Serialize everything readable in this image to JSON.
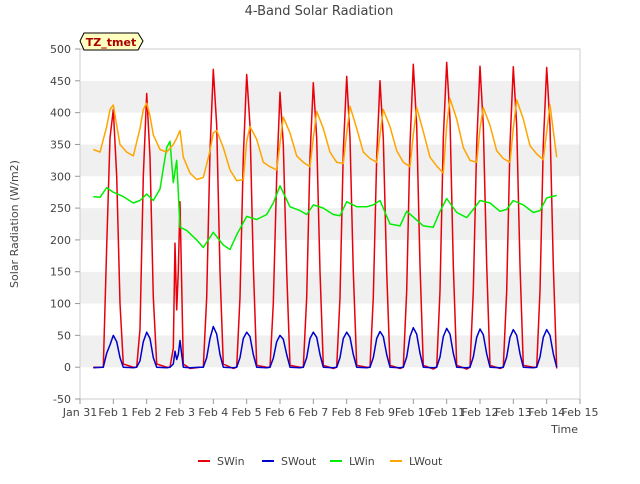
{
  "chart_data": {
    "type": "line",
    "title": "4-Band Solar Radiation",
    "xlabel": "Time",
    "ylabel": "Solar Radiation (W/m2)",
    "site_label": "TZ_tmet",
    "ylim": [
      -50,
      500
    ],
    "yticks": [
      -50,
      0,
      50,
      100,
      150,
      200,
      250,
      300,
      350,
      400,
      450,
      500
    ],
    "xlim": [
      0,
      15
    ],
    "xticks": [
      {
        "x": 0,
        "label": "Jan 31"
      },
      {
        "x": 1,
        "label": "Feb 1"
      },
      {
        "x": 2,
        "label": "Feb 2"
      },
      {
        "x": 3,
        "label": "Feb 3"
      },
      {
        "x": 4,
        "label": "Feb 4"
      },
      {
        "x": 5,
        "label": "Feb 5"
      },
      {
        "x": 6,
        "label": "Feb 6"
      },
      {
        "x": 7,
        "label": "Feb 7"
      },
      {
        "x": 8,
        "label": "Feb 8"
      },
      {
        "x": 9,
        "label": "Feb 9"
      },
      {
        "x": 10,
        "label": "Feb 10"
      },
      {
        "x": 11,
        "label": "Feb 11"
      },
      {
        "x": 12,
        "label": "Feb 12"
      },
      {
        "x": 13,
        "label": "Feb 13"
      },
      {
        "x": 14,
        "label": "Feb 14"
      },
      {
        "x": 15,
        "label": "Feb 15"
      }
    ],
    "grid": "horizontal bands",
    "legend_position": "bottom",
    "series": [
      {
        "name": "SWin",
        "color": "#e8000b",
        "x": [
          0.4,
          0.7,
          0.8,
          0.9,
          1.0,
          1.1,
          1.2,
          1.3,
          1.6,
          1.7,
          1.8,
          1.9,
          2.0,
          2.1,
          2.2,
          2.3,
          2.6,
          2.7,
          2.8,
          2.85,
          2.9,
          2.95,
          3.0,
          3.1,
          3.3,
          3.6,
          3.7,
          3.8,
          3.9,
          4.0,
          4.1,
          4.2,
          4.3,
          4.6,
          4.7,
          4.8,
          4.9,
          5.0,
          5.1,
          5.2,
          5.3,
          5.6,
          5.7,
          5.8,
          5.9,
          6.0,
          6.1,
          6.2,
          6.3,
          6.6,
          6.7,
          6.8,
          6.9,
          7.0,
          7.1,
          7.2,
          7.3,
          7.6,
          7.7,
          7.8,
          7.9,
          8.0,
          8.1,
          8.2,
          8.3,
          8.6,
          8.7,
          8.8,
          8.9,
          9.0,
          9.1,
          9.2,
          9.3,
          9.6,
          9.7,
          9.8,
          9.9,
          10.0,
          10.1,
          10.2,
          10.3,
          10.6,
          10.7,
          10.8,
          10.9,
          11.0,
          11.1,
          11.2,
          11.3,
          11.6,
          11.7,
          11.8,
          11.9,
          12.0,
          12.1,
          12.2,
          12.3,
          12.6,
          12.7,
          12.8,
          12.9,
          13.0,
          13.1,
          13.2,
          13.3,
          13.6,
          13.7,
          13.8,
          13.9,
          14.0,
          14.1,
          14.2,
          14.3
        ],
        "y": [
          0,
          0,
          190,
          360,
          405,
          300,
          100,
          5,
          0,
          0,
          60,
          300,
          430,
          330,
          110,
          5,
          0,
          0,
          30,
          195,
          90,
          150,
          260,
          5,
          -2,
          0,
          0,
          110,
          340,
          468,
          380,
          150,
          5,
          -2,
          0,
          110,
          330,
          460,
          380,
          160,
          3,
          0,
          0,
          100,
          300,
          432,
          350,
          150,
          3,
          0,
          0,
          110,
          330,
          447,
          360,
          150,
          3,
          -2,
          0,
          110,
          340,
          457,
          360,
          150,
          3,
          0,
          0,
          110,
          330,
          450,
          360,
          150,
          3,
          -2,
          0,
          120,
          350,
          476,
          380,
          160,
          3,
          -3,
          0,
          120,
          360,
          479,
          390,
          160,
          3,
          -3,
          0,
          120,
          350,
          473,
          380,
          160,
          3,
          -2,
          0,
          120,
          350,
          472,
          380,
          160,
          3,
          0,
          0,
          120,
          350,
          471,
          380,
          160,
          -2
        ]
      },
      {
        "name": "SWout",
        "color": "#0000cc",
        "x": [
          0.4,
          0.7,
          0.8,
          0.9,
          1.0,
          1.1,
          1.2,
          1.3,
          1.6,
          1.7,
          1.8,
          1.9,
          2.0,
          2.1,
          2.2,
          2.3,
          2.6,
          2.7,
          2.8,
          2.85,
          2.9,
          2.95,
          3.0,
          3.1,
          3.3,
          3.6,
          3.7,
          3.8,
          3.9,
          4.0,
          4.1,
          4.2,
          4.3,
          4.6,
          4.7,
          4.8,
          4.9,
          5.0,
          5.1,
          5.2,
          5.3,
          5.6,
          5.7,
          5.8,
          5.9,
          6.0,
          6.1,
          6.2,
          6.3,
          6.6,
          6.7,
          6.8,
          6.9,
          7.0,
          7.1,
          7.2,
          7.3,
          7.6,
          7.7,
          7.8,
          7.9,
          8.0,
          8.1,
          8.2,
          8.3,
          8.6,
          8.7,
          8.8,
          8.9,
          9.0,
          9.1,
          9.2,
          9.3,
          9.6,
          9.7,
          9.8,
          9.9,
          10.0,
          10.1,
          10.2,
          10.3,
          10.6,
          10.7,
          10.8,
          10.9,
          11.0,
          11.1,
          11.2,
          11.3,
          11.6,
          11.7,
          11.8,
          11.9,
          12.0,
          12.1,
          12.2,
          12.3,
          12.6,
          12.7,
          12.8,
          12.9,
          13.0,
          13.1,
          13.2,
          13.3,
          13.6,
          13.7,
          13.8,
          13.9,
          14.0,
          14.1,
          14.2,
          14.3
        ],
        "y": [
          -1,
          0,
          22,
          35,
          50,
          40,
          15,
          0,
          -1,
          0,
          10,
          40,
          55,
          45,
          15,
          0,
          -1,
          0,
          5,
          25,
          12,
          20,
          42,
          0,
          -1,
          0,
          0,
          15,
          45,
          64,
          52,
          20,
          0,
          -1,
          0,
          15,
          45,
          55,
          48,
          20,
          0,
          -1,
          0,
          14,
          40,
          50,
          44,
          20,
          0,
          -1,
          0,
          15,
          45,
          55,
          47,
          20,
          0,
          -1,
          0,
          15,
          45,
          55,
          47,
          20,
          0,
          -1,
          0,
          15,
          45,
          56,
          48,
          20,
          0,
          -1,
          0,
          16,
          48,
          62,
          52,
          22,
          0,
          -1,
          0,
          16,
          48,
          61,
          52,
          22,
          0,
          -1,
          0,
          16,
          47,
          60,
          51,
          21,
          0,
          -1,
          0,
          16,
          47,
          59,
          50,
          21,
          0,
          -1,
          0,
          16,
          47,
          59,
          50,
          21,
          0
        ]
      },
      {
        "name": "LWin",
        "color": "#00ee00",
        "x": [
          0.4,
          0.6,
          0.8,
          1.0,
          1.3,
          1.6,
          1.8,
          2.0,
          2.2,
          2.4,
          2.6,
          2.7,
          2.8,
          2.9,
          3.0,
          3.2,
          3.5,
          3.7,
          4.0,
          4.3,
          4.5,
          4.7,
          5.0,
          5.3,
          5.6,
          5.8,
          6.0,
          6.3,
          6.6,
          6.8,
          7.0,
          7.3,
          7.6,
          7.8,
          8.0,
          8.3,
          8.6,
          8.8,
          9.0,
          9.3,
          9.6,
          9.8,
          10.0,
          10.3,
          10.6,
          10.8,
          11.0,
          11.3,
          11.6,
          11.8,
          12.0,
          12.3,
          12.6,
          12.8,
          13.0,
          13.3,
          13.6,
          13.8,
          14.0,
          14.3
        ],
        "y": [
          268,
          267,
          282,
          275,
          268,
          258,
          262,
          272,
          262,
          280,
          345,
          355,
          290,
          325,
          220,
          215,
          200,
          188,
          212,
          192,
          185,
          208,
          237,
          232,
          240,
          258,
          285,
          252,
          246,
          240,
          255,
          250,
          240,
          238,
          260,
          252,
          252,
          255,
          262,
          225,
          222,
          245,
          236,
          222,
          220,
          245,
          265,
          243,
          235,
          248,
          262,
          258,
          245,
          248,
          262,
          255,
          243,
          246,
          266,
          270
        ]
      },
      {
        "name": "LWout",
        "color": "#ffa500",
        "x": [
          0.4,
          0.6,
          0.8,
          0.9,
          1.0,
          1.1,
          1.2,
          1.4,
          1.6,
          1.8,
          1.9,
          2.0,
          2.1,
          2.2,
          2.4,
          2.6,
          2.8,
          2.9,
          3.0,
          3.1,
          3.3,
          3.5,
          3.7,
          3.9,
          4.0,
          4.1,
          4.3,
          4.5,
          4.7,
          4.9,
          5.0,
          5.1,
          5.3,
          5.5,
          5.7,
          5.9,
          6.0,
          6.1,
          6.3,
          6.5,
          6.7,
          6.9,
          7.0,
          7.1,
          7.3,
          7.5,
          7.7,
          7.9,
          8.0,
          8.1,
          8.3,
          8.5,
          8.7,
          8.9,
          9.0,
          9.1,
          9.3,
          9.5,
          9.7,
          9.9,
          10.0,
          10.1,
          10.3,
          10.5,
          10.7,
          10.9,
          11.0,
          11.1,
          11.3,
          11.5,
          11.7,
          11.9,
          12.0,
          12.1,
          12.3,
          12.5,
          12.7,
          12.9,
          13.0,
          13.1,
          13.3,
          13.5,
          13.7,
          13.9,
          14.0,
          14.1,
          14.3
        ],
        "y": [
          342,
          338,
          378,
          405,
          412,
          380,
          350,
          338,
          332,
          375,
          405,
          415,
          395,
          365,
          342,
          338,
          350,
          360,
          372,
          330,
          305,
          295,
          298,
          340,
          368,
          372,
          345,
          310,
          293,
          295,
          355,
          378,
          358,
          322,
          315,
          310,
          352,
          393,
          368,
          332,
          322,
          315,
          360,
          402,
          375,
          338,
          322,
          320,
          368,
          410,
          375,
          338,
          328,
          322,
          365,
          405,
          378,
          340,
          322,
          315,
          365,
          408,
          370,
          330,
          316,
          305,
          380,
          422,
          390,
          345,
          325,
          322,
          375,
          408,
          380,
          340,
          328,
          322,
          375,
          420,
          390,
          348,
          335,
          326,
          370,
          412,
          330
        ]
      }
    ]
  }
}
